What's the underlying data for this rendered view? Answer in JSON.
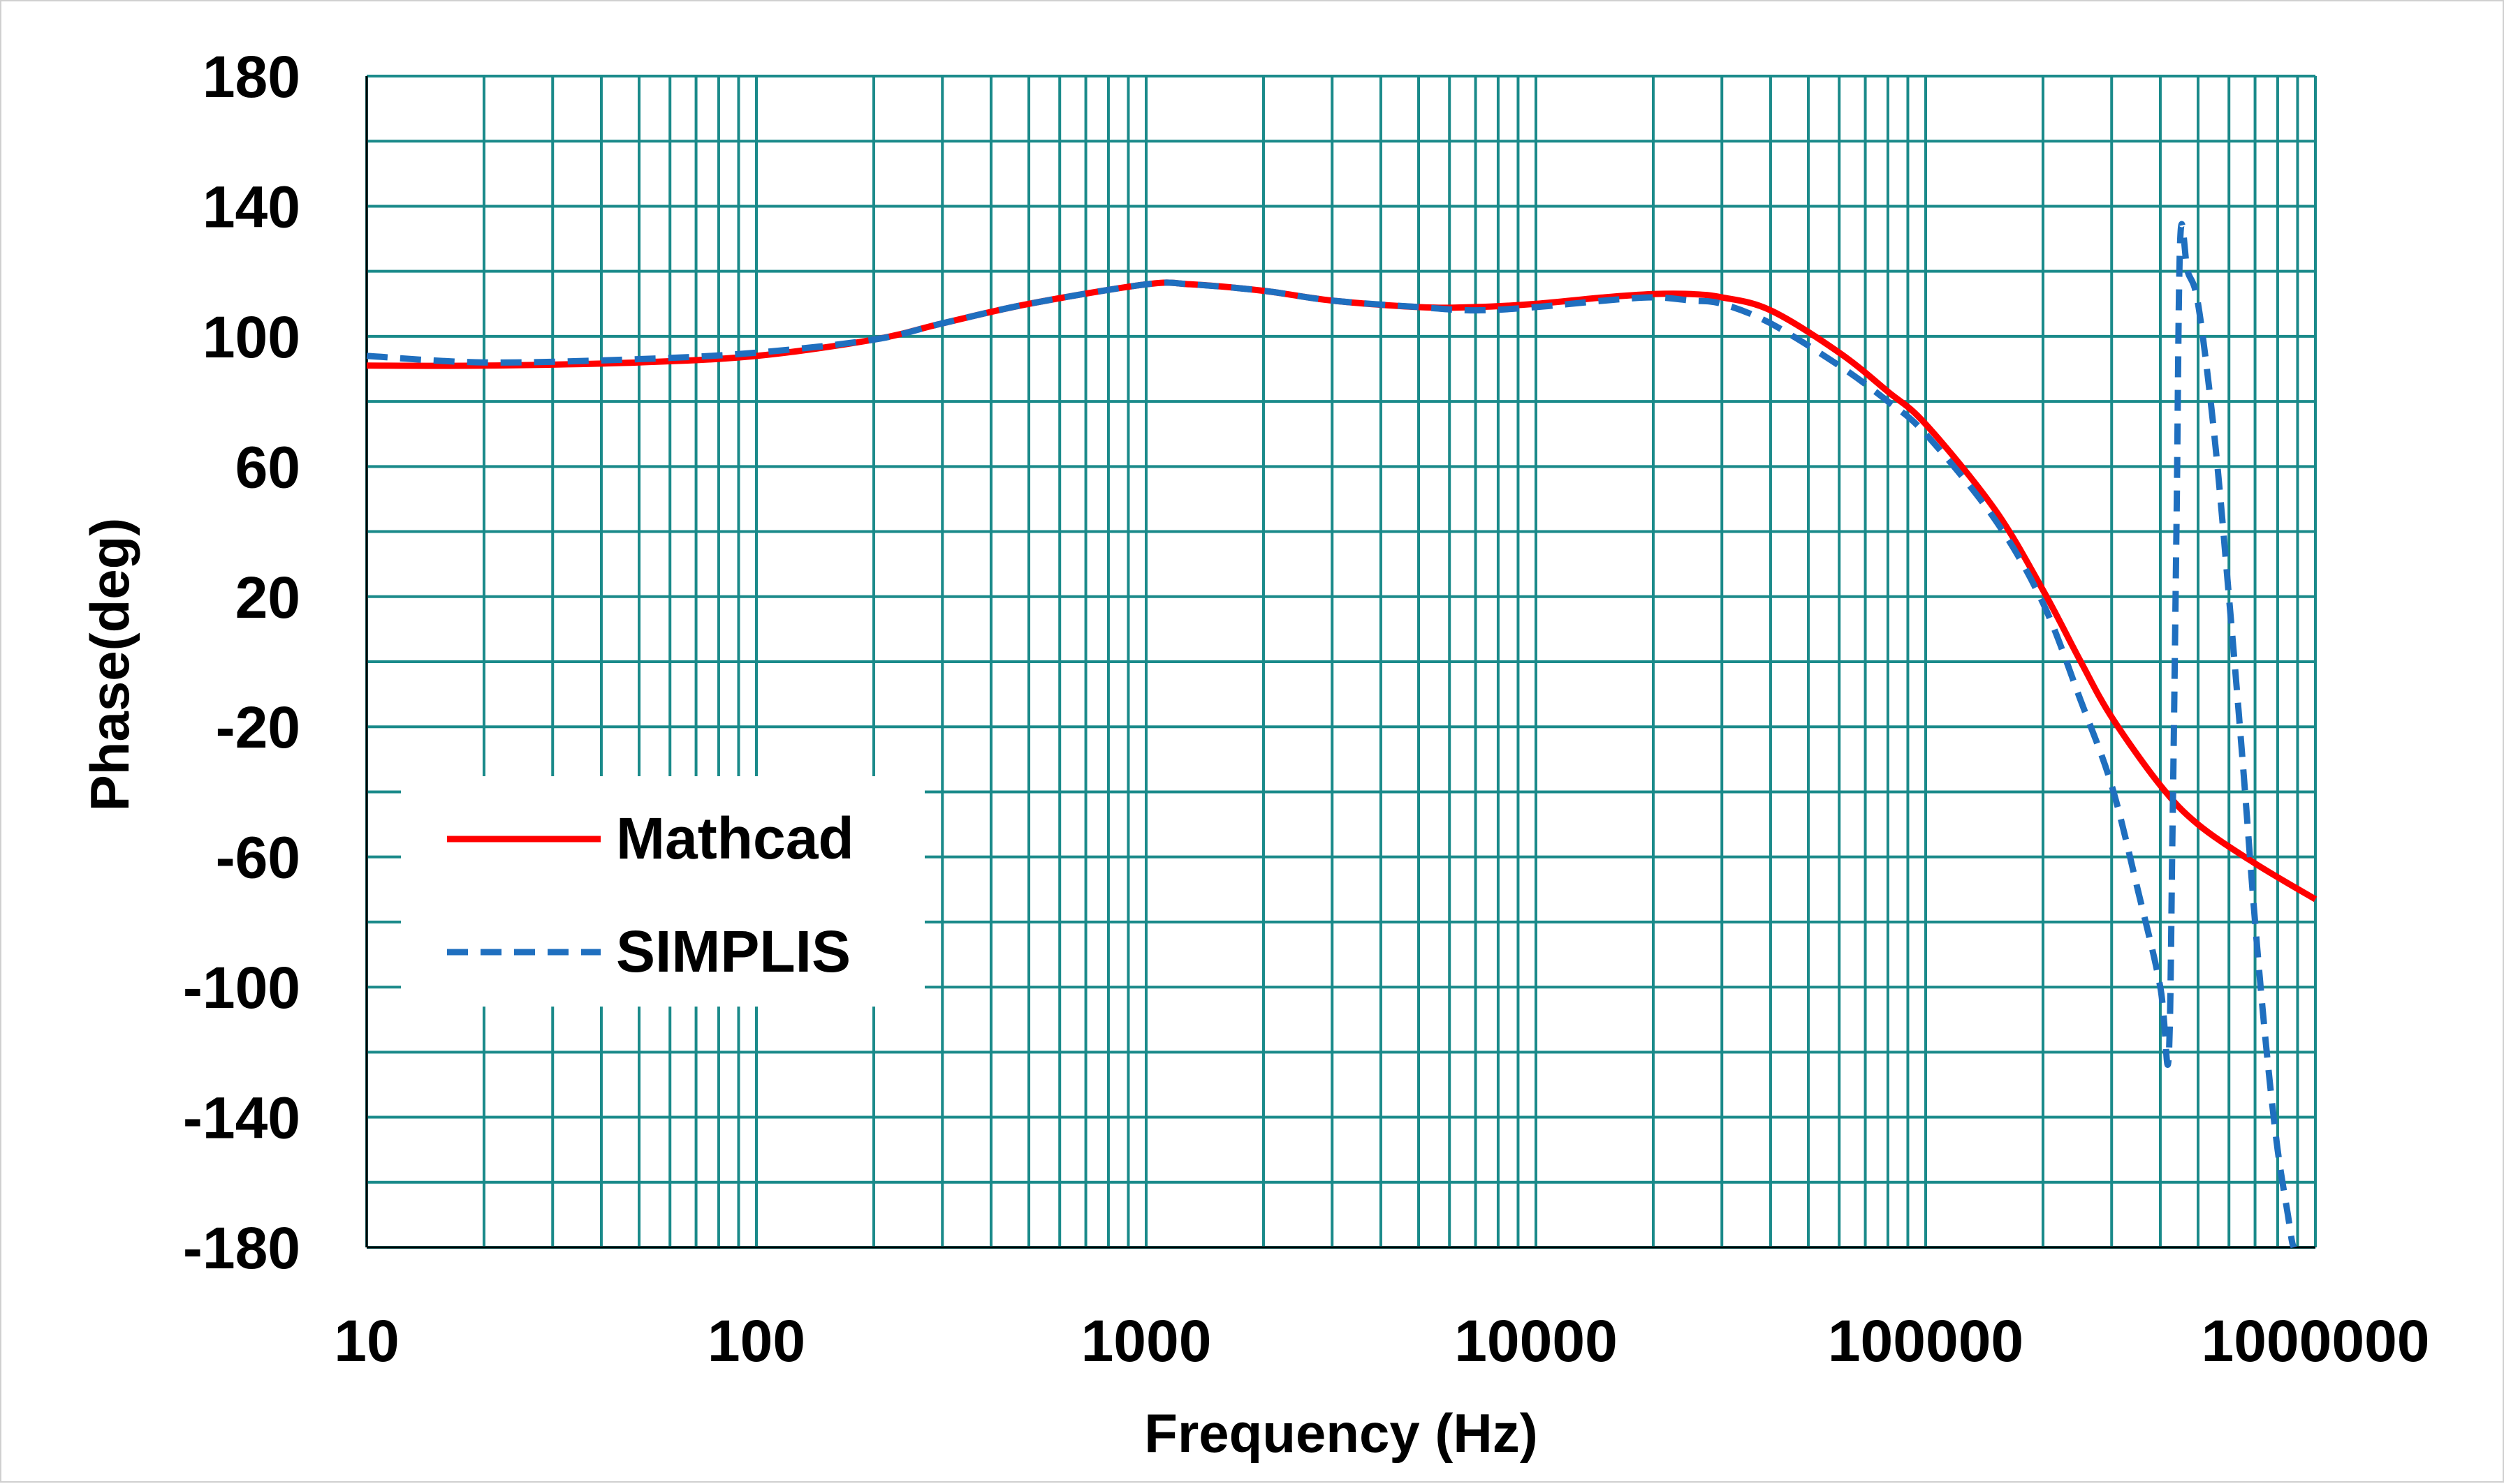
{
  "chart_data": {
    "type": "line",
    "xlabel": "Frequency (Hz)",
    "ylabel": "Phase(deg)",
    "x_scale": "log",
    "xlim": [
      10,
      1000000
    ],
    "ylim": [
      -180,
      180
    ],
    "x_ticks": [
      "10",
      "100",
      "1000",
      "10000",
      "100000",
      "1000000"
    ],
    "y_ticks": [
      "180",
      "140",
      "100",
      "60",
      "20",
      "-20",
      "-60",
      "-100",
      "-140",
      "-180"
    ],
    "grid": true,
    "legend_position": "lower-left",
    "series": [
      {
        "name": "Mathcad",
        "color": "#ff0000",
        "style": "solid",
        "x": [
          10,
          20,
          50,
          100,
          200,
          300,
          500,
          1000,
          1300,
          2000,
          3000,
          5000,
          7000,
          10000,
          15000,
          20000,
          25000,
          30000,
          40000,
          60000,
          80000,
          100000,
          150000,
          200000,
          250000,
          300000,
          400000,
          500000,
          700000,
          1000000
        ],
        "y": [
          91,
          91,
          92,
          94,
          99,
          104,
          110,
          116,
          116,
          114,
          111,
          109,
          109,
          110,
          112,
          113,
          113,
          112,
          108,
          95,
          83,
          73,
          47,
          22,
          0,
          -17,
          -38,
          -50,
          -62,
          -73
        ]
      },
      {
        "name": "SIMPLIS",
        "color": "#1f6fbf",
        "style": "dashed",
        "x": [
          10,
          20,
          50,
          100,
          200,
          300,
          500,
          1000,
          1300,
          2000,
          3000,
          5000,
          7000,
          10000,
          15000,
          20000,
          25000,
          30000,
          40000,
          60000,
          80000,
          100000,
          150000,
          200000,
          250000,
          300000,
          350000,
          400000,
          420000,
          430000,
          440000,
          450000,
          470000,
          500000,
          550000,
          600000,
          650000,
          700000,
          750000,
          800000,
          850000,
          870000,
          880000
        ],
        "y": [
          94,
          92,
          93,
          95,
          99,
          104,
          110,
          116,
          116,
          114,
          111,
          109,
          108,
          109,
          111,
          112,
          111,
          110,
          104,
          91,
          80,
          70,
          44,
          18,
          -12,
          -38,
          -70,
          -100,
          -122,
          -50,
          40,
          130,
          120,
          110,
          70,
          20,
          -30,
          -80,
          -120,
          -150,
          -170,
          -178,
          -180
        ]
      }
    ]
  }
}
